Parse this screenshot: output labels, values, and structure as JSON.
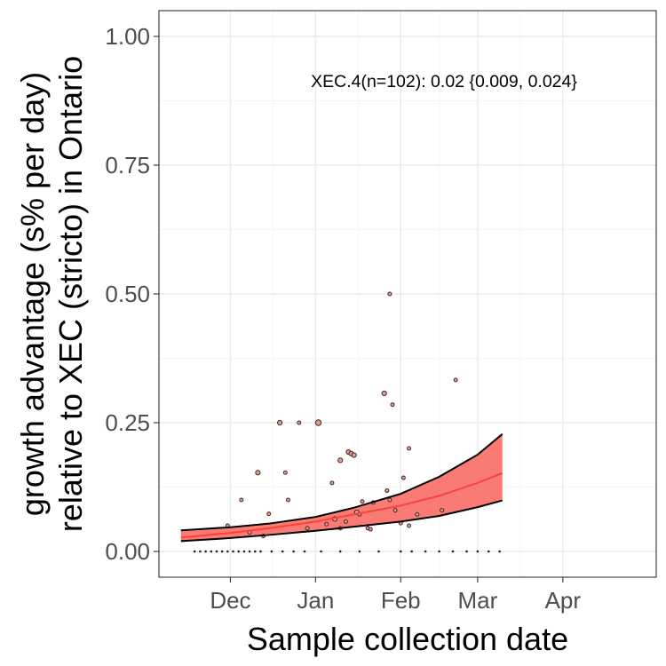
{
  "chart_data": {
    "type": "scatter",
    "xlabel": "Sample collection date",
    "ylabel_line1": "growth advantage (s% per day)",
    "ylabel_line2": "relative to XEC (stricto) in Ontario",
    "annotation": "XEC.4(n=102): 0.02 {0.009, 0.024}",
    "x_ticks": [
      {
        "date": "2024-12-01",
        "label": "Dec"
      },
      {
        "date": "2025-01-01",
        "label": "Jan"
      },
      {
        "date": "2025-02-01",
        "label": "Feb"
      },
      {
        "date": "2025-03-01",
        "label": "Mar"
      },
      {
        "date": "2025-04-01",
        "label": "Apr"
      }
    ],
    "xlim": [
      "2024-11-05",
      "2025-05-05"
    ],
    "y_ticks": [
      0.0,
      0.25,
      0.5,
      0.75,
      1.0
    ],
    "y_tick_labels": [
      "0.00",
      "0.25",
      "0.50",
      "0.75",
      "1.00"
    ],
    "ylim": [
      -0.05,
      1.05
    ],
    "grid": true,
    "colors": {
      "fit_line": "#f8443c",
      "ribbon_fill": "#fa7a74",
      "ribbon_edge": "#000000",
      "point_fill": "#e89a8e",
      "point_edge": "#3a2a2a",
      "grid_major": "#ebebeb",
      "grid_minor": "#f5f5f5"
    },
    "series": [
      {
        "kind": "fit",
        "x": [
          "2024-11-13",
          "2024-12-01",
          "2024-12-15",
          "2025-01-01",
          "2025-01-15",
          "2025-02-01",
          "2025-02-15",
          "2025-03-01",
          "2025-03-10"
        ],
        "y": [
          0.027,
          0.036,
          0.045,
          0.058,
          0.072,
          0.089,
          0.108,
          0.133,
          0.152
        ],
        "lower": [
          0.02,
          0.026,
          0.032,
          0.04,
          0.048,
          0.058,
          0.069,
          0.086,
          0.099
        ],
        "upper": [
          0.041,
          0.047,
          0.054,
          0.067,
          0.085,
          0.112,
          0.145,
          0.188,
          0.228
        ]
      },
      {
        "kind": "points",
        "points": [
          {
            "x": "2024-11-18",
            "y": 0.0,
            "n": 1
          },
          {
            "x": "2024-11-20",
            "y": 0.0,
            "n": 1
          },
          {
            "x": "2024-11-22",
            "y": 0.0,
            "n": 1
          },
          {
            "x": "2024-11-24",
            "y": 0.0,
            "n": 1
          },
          {
            "x": "2024-11-26",
            "y": 0.0,
            "n": 1
          },
          {
            "x": "2024-11-28",
            "y": 0.0,
            "n": 1
          },
          {
            "x": "2024-11-30",
            "y": 0.0,
            "n": 1
          },
          {
            "x": "2024-12-02",
            "y": 0.0,
            "n": 1
          },
          {
            "x": "2024-12-04",
            "y": 0.0,
            "n": 1
          },
          {
            "x": "2024-12-06",
            "y": 0.0,
            "n": 1
          },
          {
            "x": "2024-12-08",
            "y": 0.0,
            "n": 1
          },
          {
            "x": "2024-12-10",
            "y": 0.0,
            "n": 1
          },
          {
            "x": "2024-12-12",
            "y": 0.0,
            "n": 1
          },
          {
            "x": "2024-12-16",
            "y": 0.0,
            "n": 1
          },
          {
            "x": "2024-12-20",
            "y": 0.0,
            "n": 1
          },
          {
            "x": "2024-12-24",
            "y": 0.0,
            "n": 1
          },
          {
            "x": "2024-12-28",
            "y": 0.0,
            "n": 1
          },
          {
            "x": "2025-01-03",
            "y": 0.0,
            "n": 1
          },
          {
            "x": "2025-01-10",
            "y": 0.0,
            "n": 1
          },
          {
            "x": "2025-01-17",
            "y": 0.0,
            "n": 1
          },
          {
            "x": "2025-01-24",
            "y": 0.0,
            "n": 1
          },
          {
            "x": "2025-02-01",
            "y": 0.0,
            "n": 1
          },
          {
            "x": "2025-02-05",
            "y": 0.0,
            "n": 1
          },
          {
            "x": "2025-02-10",
            "y": 0.0,
            "n": 1
          },
          {
            "x": "2025-02-15",
            "y": 0.0,
            "n": 1
          },
          {
            "x": "2025-02-20",
            "y": 0.0,
            "n": 1
          },
          {
            "x": "2025-02-25",
            "y": 0.0,
            "n": 1
          },
          {
            "x": "2025-03-01",
            "y": 0.0,
            "n": 1
          },
          {
            "x": "2025-03-05",
            "y": 0.0,
            "n": 1
          },
          {
            "x": "2025-03-09",
            "y": 0.0,
            "n": 1
          },
          {
            "x": "2024-11-30",
            "y": 0.05,
            "n": 1
          },
          {
            "x": "2024-12-05",
            "y": 0.1,
            "n": 1
          },
          {
            "x": "2024-12-08",
            "y": 0.037,
            "n": 1
          },
          {
            "x": "2024-12-11",
            "y": 0.153,
            "n": 2
          },
          {
            "x": "2024-12-13",
            "y": 0.03,
            "n": 1
          },
          {
            "x": "2024-12-15",
            "y": 0.073,
            "n": 1
          },
          {
            "x": "2024-12-19",
            "y": 0.25,
            "n": 2
          },
          {
            "x": "2024-12-21",
            "y": 0.153,
            "n": 1
          },
          {
            "x": "2024-12-22",
            "y": 0.1,
            "n": 1
          },
          {
            "x": "2024-12-26",
            "y": 0.25,
            "n": 1
          },
          {
            "x": "2024-12-29",
            "y": 0.045,
            "n": 1
          },
          {
            "x": "2025-01-02",
            "y": 0.25,
            "n": 3
          },
          {
            "x": "2025-01-05",
            "y": 0.053,
            "n": 1
          },
          {
            "x": "2025-01-07",
            "y": 0.133,
            "n": 1
          },
          {
            "x": "2025-01-08",
            "y": 0.063,
            "n": 2
          },
          {
            "x": "2025-01-10",
            "y": 0.045,
            "n": 1
          },
          {
            "x": "2025-01-10",
            "y": 0.177,
            "n": 2
          },
          {
            "x": "2025-01-12",
            "y": 0.058,
            "n": 1
          },
          {
            "x": "2025-01-13",
            "y": 0.193,
            "n": 2
          },
          {
            "x": "2025-01-14",
            "y": 0.19,
            "n": 2
          },
          {
            "x": "2025-01-15",
            "y": 0.187,
            "n": 2
          },
          {
            "x": "2025-01-16",
            "y": 0.076,
            "n": 2
          },
          {
            "x": "2025-01-17",
            "y": 0.072,
            "n": 1
          },
          {
            "x": "2025-01-18",
            "y": 0.097,
            "n": 1
          },
          {
            "x": "2025-01-20",
            "y": 0.045,
            "n": 1
          },
          {
            "x": "2025-01-21",
            "y": 0.043,
            "n": 1
          },
          {
            "x": "2025-01-22",
            "y": 0.095,
            "n": 1
          },
          {
            "x": "2025-01-26",
            "y": 0.307,
            "n": 2
          },
          {
            "x": "2025-01-27",
            "y": 0.118,
            "n": 1
          },
          {
            "x": "2025-01-28",
            "y": 0.5,
            "n": 1
          },
          {
            "x": "2025-01-28",
            "y": 0.1,
            "n": 1
          },
          {
            "x": "2025-01-29",
            "y": 0.285,
            "n": 1
          },
          {
            "x": "2025-01-30",
            "y": 0.08,
            "n": 1
          },
          {
            "x": "2025-02-01",
            "y": 0.055,
            "n": 1
          },
          {
            "x": "2025-02-02",
            "y": 0.143,
            "n": 1
          },
          {
            "x": "2025-02-04",
            "y": 0.05,
            "n": 1
          },
          {
            "x": "2025-02-04",
            "y": 0.2,
            "n": 1
          },
          {
            "x": "2025-02-07",
            "y": 0.072,
            "n": 1
          },
          {
            "x": "2025-02-16",
            "y": 0.08,
            "n": 1
          },
          {
            "x": "2025-02-21",
            "y": 0.333,
            "n": 1
          }
        ]
      }
    ]
  }
}
